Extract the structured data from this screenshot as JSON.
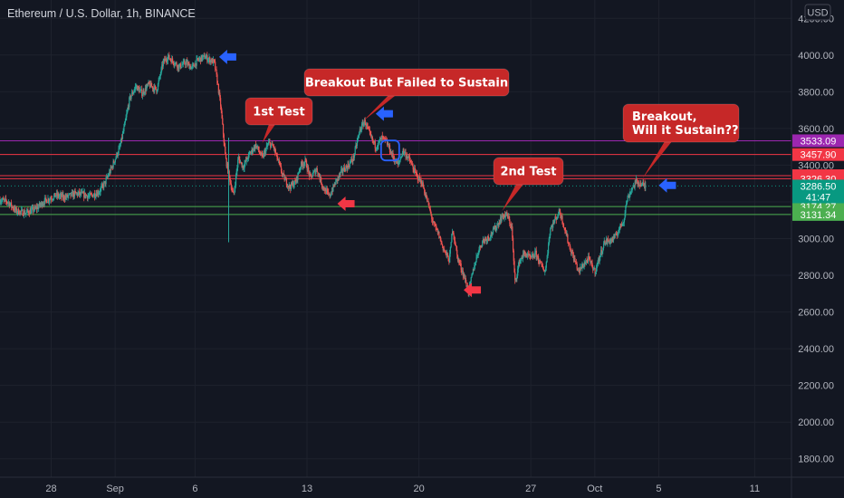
{
  "symbol_title": "Ethereum / U.S. Dollar, 1h, BINANCE",
  "currency": "USD",
  "chart_data": {
    "type": "candlestick",
    "title": "Ethereum / U.S. Dollar, 1h, BINANCE",
    "ylim": [
      1700,
      4300
    ],
    "y_ticks": [
      "4200.00",
      "4000.00",
      "3800.00",
      "3600.00",
      "3400.00",
      "3200.00",
      "3000.00",
      "2800.00",
      "2600.00",
      "2400.00",
      "2200.00",
      "2000.00",
      "1800.00"
    ],
    "x_ticks": [
      {
        "label": "28",
        "day": 28
      },
      {
        "label": "Sep",
        "day": 32
      },
      {
        "label": "6",
        "day": 37
      },
      {
        "label": "13",
        "day": 44
      },
      {
        "label": "20",
        "day": 51
      },
      {
        "label": "27",
        "day": 58
      },
      {
        "label": "Oct",
        "day": 62
      },
      {
        "label": "5",
        "day": 66
      },
      {
        "label": "11",
        "day": 72
      }
    ],
    "xlim_days": [
      24.8,
      74.3
    ],
    "price_path": [
      [
        24.8,
        3210
      ],
      [
        25.3,
        3200
      ],
      [
        25.8,
        3150
      ],
      [
        26.4,
        3140
      ],
      [
        27.0,
        3160
      ],
      [
        27.6,
        3205
      ],
      [
        28.3,
        3235
      ],
      [
        28.9,
        3225
      ],
      [
        29.5,
        3245
      ],
      [
        30.0,
        3240
      ],
      [
        30.4,
        3230
      ],
      [
        31.0,
        3255
      ],
      [
        31.4,
        3310
      ],
      [
        31.8,
        3390
      ],
      [
        32.3,
        3500
      ],
      [
        32.6,
        3620
      ],
      [
        32.9,
        3760
      ],
      [
        33.3,
        3830
      ],
      [
        33.7,
        3790
      ],
      [
        34.1,
        3840
      ],
      [
        34.6,
        3810
      ],
      [
        35.0,
        3960
      ],
      [
        35.3,
        3990
      ],
      [
        35.7,
        3960
      ],
      [
        36.0,
        3935
      ],
      [
        36.4,
        3960
      ],
      [
        36.8,
        3930
      ],
      [
        37.2,
        3975
      ],
      [
        37.6,
        3990
      ],
      [
        37.9,
        3975
      ],
      [
        38.2,
        3960
      ],
      [
        38.4,
        3850
      ],
      [
        38.6,
        3720
      ],
      [
        38.9,
        3440
      ],
      [
        39.1,
        3350
      ],
      [
        39.4,
        3230
      ],
      [
        39.7,
        3440
      ],
      [
        40.0,
        3390
      ],
      [
        40.4,
        3460
      ],
      [
        40.8,
        3510
      ],
      [
        41.2,
        3440
      ],
      [
        41.6,
        3520
      ],
      [
        41.9,
        3500
      ],
      [
        42.2,
        3420
      ],
      [
        42.5,
        3340
      ],
      [
        42.9,
        3280
      ],
      [
        43.3,
        3310
      ],
      [
        43.6,
        3400
      ],
      [
        43.9,
        3420
      ],
      [
        44.2,
        3330
      ],
      [
        44.6,
        3380
      ],
      [
        45.0,
        3280
      ],
      [
        45.4,
        3230
      ],
      [
        45.8,
        3310
      ],
      [
        46.2,
        3370
      ],
      [
        46.6,
        3400
      ],
      [
        46.9,
        3440
      ],
      [
        47.3,
        3590
      ],
      [
        47.6,
        3640
      ],
      [
        48.0,
        3550
      ],
      [
        48.3,
        3500
      ],
      [
        48.7,
        3550
      ],
      [
        49.0,
        3520
      ],
      [
        49.4,
        3440
      ],
      [
        49.7,
        3400
      ],
      [
        50.0,
        3480
      ],
      [
        50.4,
        3430
      ],
      [
        50.8,
        3350
      ],
      [
        51.2,
        3300
      ],
      [
        51.6,
        3180
      ],
      [
        51.9,
        3080
      ],
      [
        52.2,
        3030
      ],
      [
        52.5,
        2950
      ],
      [
        52.9,
        2880
      ],
      [
        53.1,
        3060
      ],
      [
        53.4,
        2900
      ],
      [
        53.8,
        2800
      ],
      [
        54.1,
        2710
      ],
      [
        54.4,
        2830
      ],
      [
        54.7,
        2930
      ],
      [
        55.0,
        2990
      ],
      [
        55.4,
        3010
      ],
      [
        55.8,
        3060
      ],
      [
        56.2,
        3120
      ],
      [
        56.5,
        3130
      ],
      [
        56.8,
        3060
      ],
      [
        57.0,
        2760
      ],
      [
        57.3,
        2880
      ],
      [
        57.6,
        2920
      ],
      [
        58.0,
        2890
      ],
      [
        58.3,
        2920
      ],
      [
        58.6,
        2860
      ],
      [
        58.9,
        2820
      ],
      [
        59.2,
        3050
      ],
      [
        59.5,
        3100
      ],
      [
        59.8,
        3150
      ],
      [
        60.1,
        3060
      ],
      [
        60.4,
        2960
      ],
      [
        60.7,
        2890
      ],
      [
        61.0,
        2820
      ],
      [
        61.3,
        2860
      ],
      [
        61.6,
        2890
      ],
      [
        62.0,
        2820
      ],
      [
        62.3,
        2900
      ],
      [
        62.6,
        2980
      ],
      [
        63.0,
        2990
      ],
      [
        63.3,
        3010
      ],
      [
        63.5,
        3050
      ],
      [
        63.8,
        3100
      ],
      [
        64.0,
        3210
      ],
      [
        64.3,
        3270
      ],
      [
        64.6,
        3310
      ],
      [
        64.9,
        3295
      ],
      [
        65.2,
        3285
      ]
    ],
    "horizontal_lines": [
      {
        "label": "3533.09",
        "price": 3533.09,
        "color": "#9c27b0"
      },
      {
        "label": "3457.90",
        "price": 3457.9,
        "color": "#f23645"
      },
      {
        "label": "3342.74",
        "price": 3342.74,
        "color": "#f23645"
      },
      {
        "label": "3326.30",
        "price": 3326.3,
        "color": "#f23645"
      },
      {
        "label": "3174.27",
        "price": 3174.27,
        "color": "#4caf50"
      },
      {
        "label": "3131.34",
        "price": 3131.34,
        "color": "#4caf50"
      }
    ],
    "last_price": {
      "label": "3286.50",
      "countdown": "41:47",
      "price": 3286.5,
      "color": "#089981"
    },
    "annotations": [
      {
        "id": "breakout-failed",
        "lines": [
          "Breakout But Failed to Sustain"
        ],
        "color": "#c62828",
        "pointer": {
          "day": 47.5,
          "price": 3640
        }
      },
      {
        "id": "first-test",
        "lines": [
          "1st Test"
        ],
        "color": "#c62828",
        "pointer": {
          "day": 41.2,
          "price": 3520
        }
      },
      {
        "id": "second-test",
        "lines": [
          "2nd Test"
        ],
        "color": "#c62828",
        "pointer": {
          "day": 56.2,
          "price": 3150
        }
      },
      {
        "id": "breakout-sustain",
        "lines": [
          "Breakout,",
          "Will it Sustain??"
        ],
        "color": "#c62828",
        "pointer": {
          "day": 65.0,
          "price": 3330
        }
      }
    ],
    "markers": [
      {
        "type": "arrow-left",
        "color": "#2962ff",
        "day": 38.5,
        "price": 3990
      },
      {
        "type": "arrow-left",
        "color": "#f23645",
        "day": 45.9,
        "price": 3190
      },
      {
        "type": "arrow-left",
        "color": "#2962ff",
        "day": 48.3,
        "price": 3680
      },
      {
        "type": "arrow-left",
        "color": "#f23645",
        "day": 53.8,
        "price": 2720
      },
      {
        "type": "arrow-left",
        "color": "#2962ff",
        "day": 66.0,
        "price": 3290
      },
      {
        "type": "rounded-box",
        "color": "#2962ff",
        "day": 49.2,
        "price": 3480
      }
    ]
  }
}
